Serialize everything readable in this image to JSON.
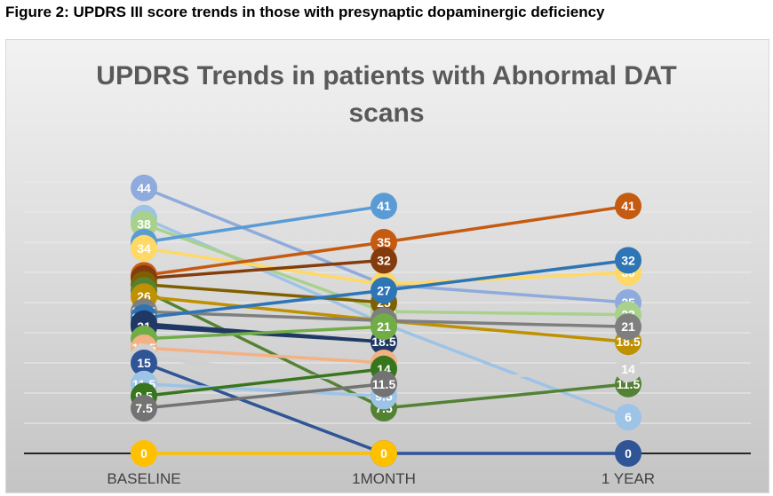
{
  "figure_caption": "Figure 2: UPDRS III score trends in those with presynaptic dopaminergic deficiency",
  "chart_data": {
    "type": "line",
    "title_line1": "UPDRS Trends in patients with Abnormal DAT",
    "title_line2": "scans",
    "categories": [
      "BASELINE",
      "1MONTH",
      "1 YEAR"
    ],
    "ylim": [
      0,
      46
    ],
    "grid": true,
    "legend": "none",
    "series": [
      {
        "values": [
          44,
          28,
          25
        ],
        "color": "#8faadc"
      },
      {
        "values": [
          39,
          21.5,
          6
        ],
        "color": "#9dc3e6"
      },
      {
        "values": [
          38,
          23.5,
          23
        ],
        "color": "#a9d18e"
      },
      {
        "values": [
          35,
          41,
          null
        ],
        "color": "#5b9bd5"
      },
      {
        "values": [
          34,
          28,
          30
        ],
        "color": "#ffd966"
      },
      {
        "values": [
          29.5,
          35,
          41
        ],
        "color": "#c55a11"
      },
      {
        "values": [
          29,
          32,
          null
        ],
        "color": "#843c0c"
      },
      {
        "values": [
          28,
          25,
          null
        ],
        "color": "#7f6000"
      },
      {
        "values": [
          27,
          7.5,
          11.5
        ],
        "color": "#548235"
      },
      {
        "values": [
          26,
          22,
          18.5
        ],
        "color": "#bf9000"
      },
      {
        "values": [
          23.5,
          22,
          21
        ],
        "color": "#7f7f7f"
      },
      {
        "values": [
          22.5,
          27,
          32
        ],
        "color": "#2e75b6"
      },
      {
        "values": [
          21.5,
          18.5,
          null
        ],
        "color": "#1f3864"
      },
      {
        "values": [
          21,
          18.5,
          null
        ],
        "color": "#203864"
      },
      {
        "values": [
          19,
          21,
          null
        ],
        "color": "#70ad47"
      },
      {
        "values": [
          17.5,
          15,
          null
        ],
        "color": "#f4b183"
      },
      {
        "values": [
          16,
          11.5,
          14
        ],
        "color": "#d0d0d0"
      },
      {
        "values": [
          15,
          0,
          0
        ],
        "color": "#2f5597"
      },
      {
        "values": [
          11.5,
          9.5,
          null
        ],
        "color": "#9dc3e6"
      },
      {
        "values": [
          9.5,
          14,
          null
        ],
        "color": "#38761d"
      },
      {
        "values": [
          7.5,
          11.5,
          null
        ],
        "color": "#737373"
      },
      {
        "values": [
          0,
          0,
          null
        ],
        "color": "#ffc000"
      }
    ]
  }
}
